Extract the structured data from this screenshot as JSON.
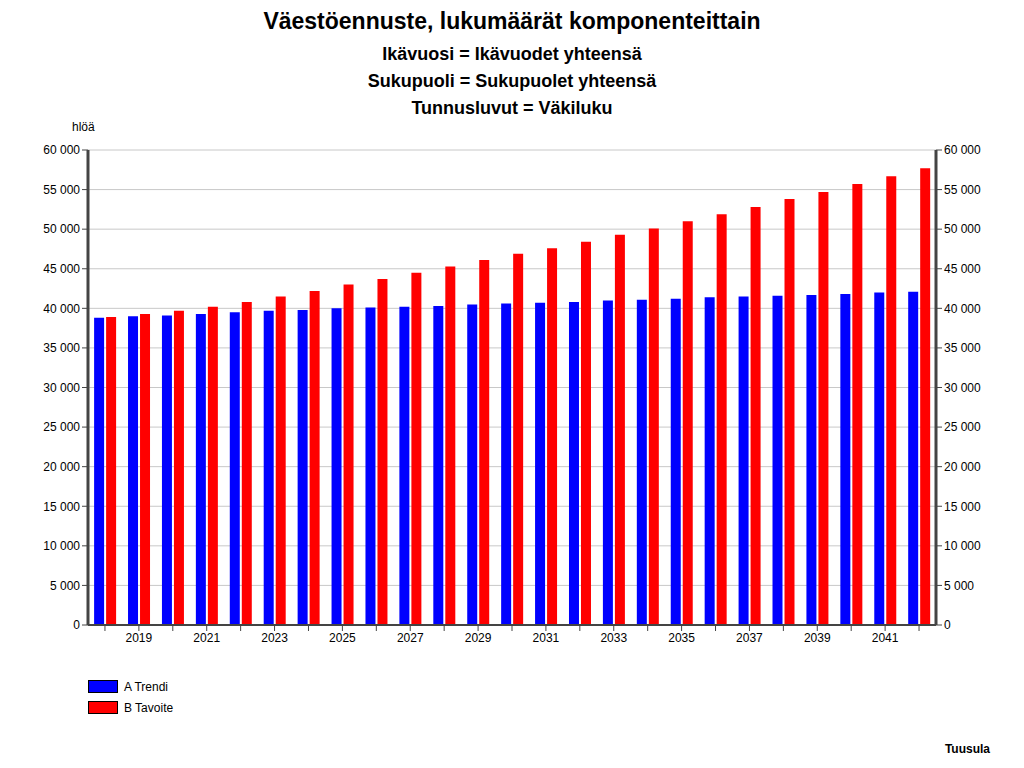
{
  "chart_data": {
    "type": "bar",
    "title": "Väestöennuste, lukumäärät komponenteittain",
    "subtitle": [
      "Ikävuosi = Ikävuodet yhteensä",
      "Sukupuoli = Sukupuolet yhteensä",
      "Tunnusluvut = Väkiluku"
    ],
    "ylabel": "hlöä",
    "annotations": [
      "Tuusula"
    ],
    "categories": [
      null,
      "2019",
      null,
      "2021",
      null,
      "2023",
      null,
      "2025",
      null,
      "2027",
      null,
      "2029",
      null,
      "2031",
      null,
      "2033",
      null,
      "2035",
      null,
      "2037",
      null,
      "2039",
      null,
      "2041",
      null
    ],
    "series": [
      {
        "name": "A Trendi",
        "color": "#0000ff",
        "values": [
          38800,
          39000,
          39100,
          39300,
          39500,
          39700,
          39800,
          40000,
          40100,
          40200,
          40300,
          40500,
          40600,
          40700,
          40800,
          41000,
          41100,
          41200,
          41400,
          41500,
          41600,
          41700,
          41800,
          42000,
          42100
        ]
      },
      {
        "name": "B Tavoite",
        "color": "#ff0000",
        "values": [
          38900,
          39300,
          39700,
          40200,
          40800,
          41500,
          42200,
          43000,
          43700,
          44500,
          45300,
          46100,
          46900,
          47600,
          48400,
          49300,
          50100,
          51000,
          51900,
          52800,
          53800,
          54700,
          55700,
          56700,
          57700
        ]
      }
    ],
    "ylim": [
      0,
      60000
    ],
    "yticks": [
      0,
      {
        "value": 5000,
        "label": "5 000"
      },
      {
        "value": 10000,
        "label": "10 000"
      },
      {
        "value": 15000,
        "label": "15 000"
      },
      {
        "value": 20000,
        "label": "20 000"
      },
      {
        "value": 25000,
        "label": "25 000"
      },
      {
        "value": 30000,
        "label": "30 000"
      },
      {
        "value": 35000,
        "label": "35 000"
      },
      {
        "value": 40000,
        "label": "40 000"
      },
      {
        "value": 45000,
        "label": "45 000"
      },
      {
        "value": 50000,
        "label": "50 000"
      },
      {
        "value": 55000,
        "label": "55 000"
      },
      {
        "value": 60000,
        "label": "60 000"
      }
    ],
    "y2lim": [
      0,
      60000
    ],
    "y2ticks": [
      0,
      {
        "value": 5000,
        "label": "5 000"
      },
      {
        "value": 10000,
        "label": "10 000"
      },
      {
        "value": 15000,
        "label": "15 000"
      },
      {
        "value": 20000,
        "label": "20 000"
      },
      {
        "value": 25000,
        "label": "25 000"
      },
      {
        "value": 30000,
        "label": "30 000"
      },
      {
        "value": 35000,
        "label": "35 000"
      },
      {
        "value": 40000,
        "label": "40 000"
      },
      {
        "value": 45000,
        "label": "45 000"
      },
      {
        "value": 50000,
        "label": "50 000"
      },
      {
        "value": 55000,
        "label": "55 000"
      },
      {
        "value": 60000,
        "label": "60 000"
      }
    ],
    "grid": true,
    "legend": "bottom-left"
  }
}
